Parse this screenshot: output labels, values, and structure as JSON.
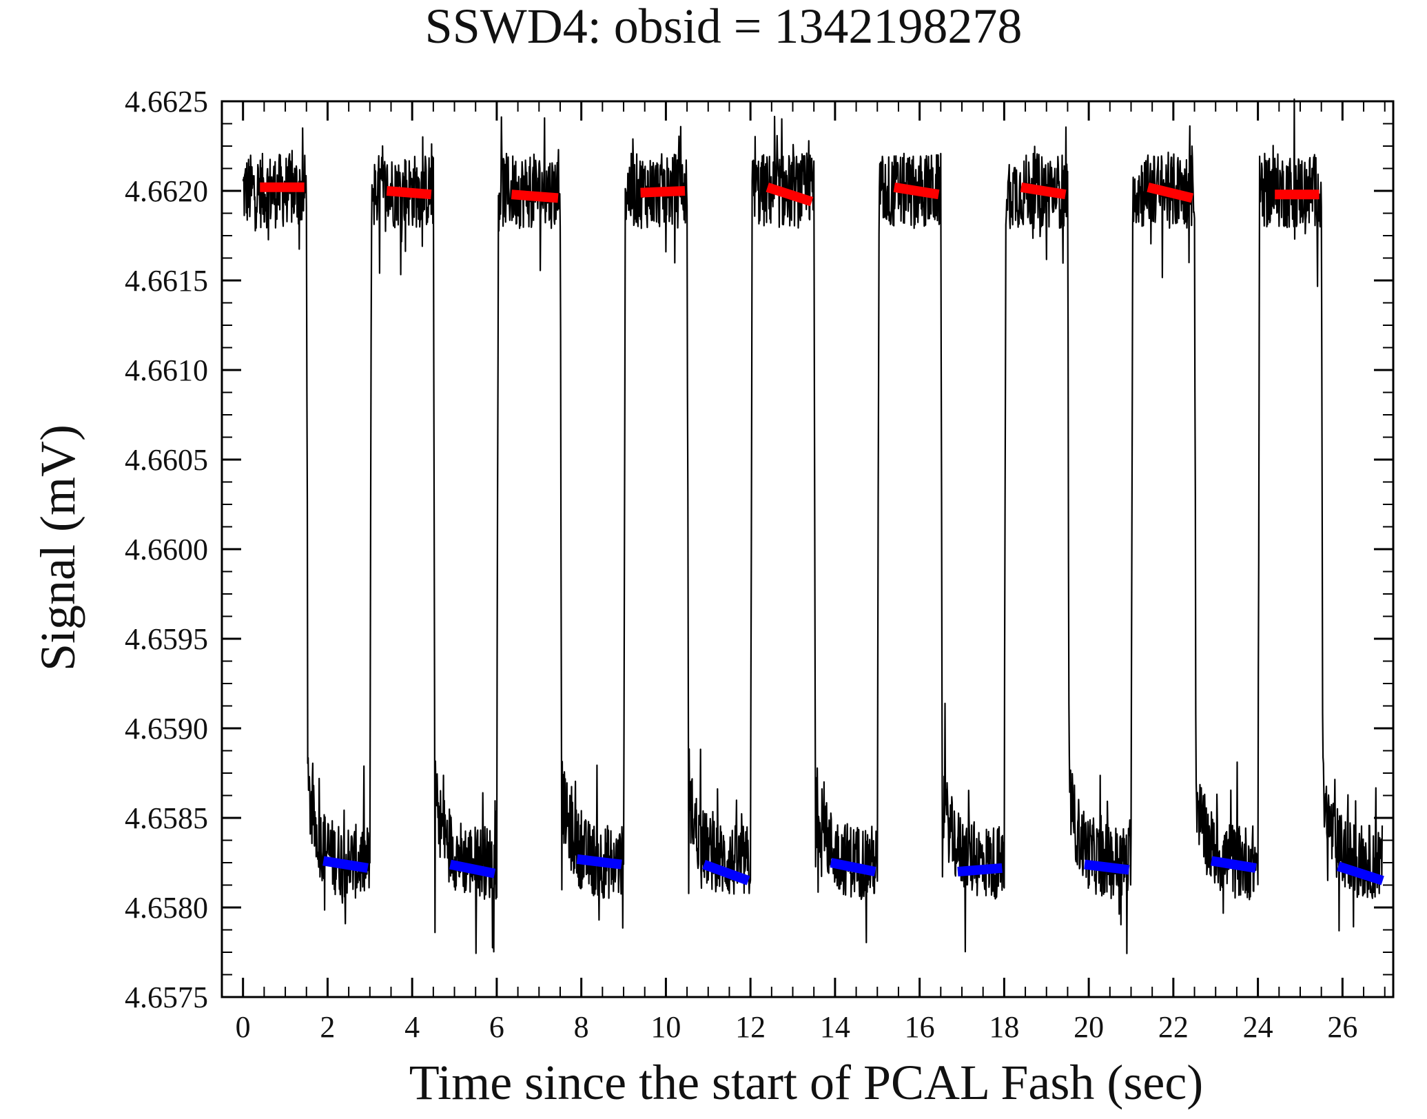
{
  "chart_data": {
    "type": "line",
    "title": "SSWD4: obsid = 1342198278",
    "xlabel": "Time since the start of PCAL Fash (sec)",
    "ylabel": "Signal (mV)",
    "xlim": [
      -0.5,
      27.2
    ],
    "ylim": [
      4.6575,
      4.6625
    ],
    "x_ticks": [
      0,
      2,
      4,
      6,
      8,
      10,
      12,
      14,
      16,
      18,
      20,
      22,
      24,
      26
    ],
    "x_tick_labels": [
      "0",
      "2",
      "4",
      "6",
      "8",
      "10",
      "12",
      "14",
      "16",
      "18",
      "20",
      "22",
      "24",
      "26"
    ],
    "y_ticks": [
      4.6575,
      4.658,
      4.6585,
      4.659,
      4.6595,
      4.66,
      4.6605,
      4.661,
      4.6615,
      4.662,
      4.6625
    ],
    "y_tick_labels": [
      "4.6575",
      "4.6580",
      "4.6585",
      "4.6590",
      "4.6595",
      "4.6600",
      "4.6605",
      "4.6610",
      "4.6615",
      "4.6620",
      "4.6625"
    ],
    "grid": false,
    "series": [
      {
        "name": "signal",
        "color": "#000000",
        "period_sec": 3.0,
        "high_level_mV": 4.662,
        "low_level_mV": 4.65825,
        "first_drop_sec": 1.5,
        "noise_amplitude_mV": 0.0003
      }
    ],
    "high_fits": {
      "color": "#ff0000",
      "segments": [
        {
          "x0": 0.4,
          "x1": 1.45,
          "y0": 4.66202,
          "y1": 4.66202
        },
        {
          "x0": 3.4,
          "x1": 4.45,
          "y0": 4.662,
          "y1": 4.66198
        },
        {
          "x0": 6.35,
          "x1": 7.45,
          "y0": 4.66198,
          "y1": 4.66196
        },
        {
          "x0": 9.4,
          "x1": 10.45,
          "y0": 4.66199,
          "y1": 4.662
        },
        {
          "x0": 12.4,
          "x1": 13.45,
          "y0": 4.66202,
          "y1": 4.66194
        },
        {
          "x0": 15.4,
          "x1": 16.45,
          "y0": 4.66202,
          "y1": 4.66198
        },
        {
          "x0": 18.4,
          "x1": 19.45,
          "y0": 4.66202,
          "y1": 4.66198
        },
        {
          "x0": 21.4,
          "x1": 22.45,
          "y0": 4.66202,
          "y1": 4.66196
        },
        {
          "x0": 24.4,
          "x1": 25.45,
          "y0": 4.66198,
          "y1": 4.66198
        }
      ]
    },
    "low_fits": {
      "color": "#0000ff",
      "segments": [
        {
          "x0": 1.9,
          "x1": 2.95,
          "y0": 4.65826,
          "y1": 4.65822
        },
        {
          "x0": 4.9,
          "x1": 5.95,
          "y0": 4.65824,
          "y1": 4.65819
        },
        {
          "x0": 7.9,
          "x1": 8.95,
          "y0": 4.65827,
          "y1": 4.65824
        },
        {
          "x0": 10.9,
          "x1": 11.95,
          "y0": 4.65824,
          "y1": 4.65815
        },
        {
          "x0": 13.9,
          "x1": 14.95,
          "y0": 4.65825,
          "y1": 4.6582
        },
        {
          "x0": 16.9,
          "x1": 17.95,
          "y0": 4.6582,
          "y1": 4.65822
        },
        {
          "x0": 19.9,
          "x1": 20.95,
          "y0": 4.65824,
          "y1": 4.65821
        },
        {
          "x0": 22.9,
          "x1": 23.95,
          "y0": 4.65826,
          "y1": 4.65822
        },
        {
          "x0": 25.9,
          "x1": 26.95,
          "y0": 4.65823,
          "y1": 4.65815
        }
      ]
    }
  }
}
